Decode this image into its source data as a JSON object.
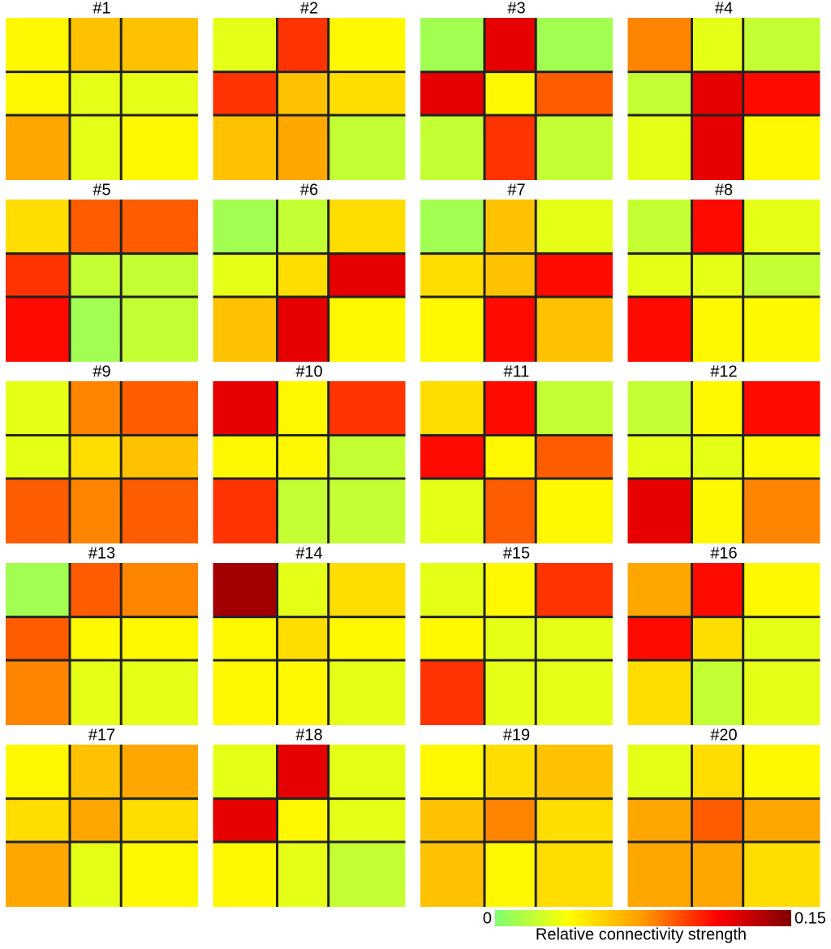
{
  "chart_data": {
    "type": "heatmap",
    "size": 30,
    "colormap": [
      "#80ff70",
      "#ffff00",
      "#ff9900",
      "#ff0000",
      "#800000"
    ],
    "colorbar": {
      "label": "Relative connectivity strength",
      "lim": [
        0,
        0.15
      ],
      "ticks": [
        0,
        0.15
      ]
    },
    "panels": [
      {
        "title": "#1",
        "boundaries": [
          10,
          18
        ],
        "values": [
          [
            0.04,
            0.06,
            0.06
          ],
          [
            0.04,
            0.03,
            0.03
          ],
          [
            0.07,
            0.03,
            0.04
          ]
        ]
      },
      {
        "title": "#2",
        "boundaries": [
          10,
          18
        ],
        "values": [
          [
            0.03,
            0.1,
            0.04
          ],
          [
            0.1,
            0.06,
            0.05
          ],
          [
            0.06,
            0.07,
            0.02
          ]
        ]
      },
      {
        "title": "#3",
        "boundaries": [
          10,
          18
        ],
        "values": [
          [
            0.01,
            0.12,
            0.01
          ],
          [
            0.12,
            0.04,
            0.09
          ],
          [
            0.02,
            0.1,
            0.02
          ]
        ]
      },
      {
        "title": "#4",
        "boundaries": [
          10,
          18
        ],
        "values": [
          [
            0.08,
            0.03,
            0.02
          ],
          [
            0.02,
            0.12,
            0.11
          ],
          [
            0.03,
            0.12,
            0.04
          ]
        ]
      },
      {
        "title": "#5",
        "boundaries": [
          10,
          18
        ],
        "values": [
          [
            0.05,
            0.09,
            0.09
          ],
          [
            0.1,
            0.02,
            0.02
          ],
          [
            0.11,
            0.01,
            0.02
          ]
        ]
      },
      {
        "title": "#6",
        "boundaries": [
          10,
          18
        ],
        "values": [
          [
            0.01,
            0.02,
            0.05
          ],
          [
            0.03,
            0.05,
            0.12
          ],
          [
            0.06,
            0.12,
            0.04
          ]
        ]
      },
      {
        "title": "#7",
        "boundaries": [
          10,
          18
        ],
        "values": [
          [
            0.01,
            0.06,
            0.03
          ],
          [
            0.05,
            0.06,
            0.11
          ],
          [
            0.04,
            0.11,
            0.06
          ]
        ]
      },
      {
        "title": "#8",
        "boundaries": [
          10,
          18
        ],
        "values": [
          [
            0.02,
            0.11,
            0.03
          ],
          [
            0.03,
            0.03,
            0.02
          ],
          [
            0.11,
            0.04,
            0.04
          ]
        ]
      },
      {
        "title": "#9",
        "boundaries": [
          10,
          18
        ],
        "values": [
          [
            0.03,
            0.08,
            0.09
          ],
          [
            0.03,
            0.05,
            0.06
          ],
          [
            0.09,
            0.08,
            0.09
          ]
        ]
      },
      {
        "title": "#10",
        "boundaries": [
          10,
          18
        ],
        "values": [
          [
            0.12,
            0.04,
            0.1
          ],
          [
            0.04,
            0.04,
            0.02
          ],
          [
            0.1,
            0.02,
            0.02
          ]
        ]
      },
      {
        "title": "#11",
        "boundaries": [
          10,
          18
        ],
        "values": [
          [
            0.05,
            0.11,
            0.02
          ],
          [
            0.11,
            0.04,
            0.09
          ],
          [
            0.03,
            0.09,
            0.04
          ]
        ]
      },
      {
        "title": "#12",
        "boundaries": [
          10,
          18
        ],
        "values": [
          [
            0.02,
            0.04,
            0.11
          ],
          [
            0.03,
            0.03,
            0.04
          ],
          [
            0.12,
            0.04,
            0.08
          ]
        ]
      },
      {
        "title": "#13",
        "boundaries": [
          10,
          18
        ],
        "values": [
          [
            0.01,
            0.09,
            0.08
          ],
          [
            0.09,
            0.04,
            0.04
          ],
          [
            0.08,
            0.03,
            0.03
          ]
        ]
      },
      {
        "title": "#14",
        "boundaries": [
          10,
          18
        ],
        "values": [
          [
            0.14,
            0.03,
            0.05
          ],
          [
            0.04,
            0.05,
            0.04
          ],
          [
            0.04,
            0.04,
            0.03
          ]
        ]
      },
      {
        "title": "#15",
        "boundaries": [
          10,
          18
        ],
        "values": [
          [
            0.03,
            0.04,
            0.1
          ],
          [
            0.04,
            0.03,
            0.03
          ],
          [
            0.1,
            0.03,
            0.03
          ]
        ]
      },
      {
        "title": "#16",
        "boundaries": [
          10,
          18
        ],
        "values": [
          [
            0.07,
            0.11,
            0.04
          ],
          [
            0.11,
            0.05,
            0.03
          ],
          [
            0.05,
            0.02,
            0.03
          ]
        ]
      },
      {
        "title": "#17",
        "boundaries": [
          10,
          18
        ],
        "values": [
          [
            0.04,
            0.06,
            0.07
          ],
          [
            0.05,
            0.07,
            0.05
          ],
          [
            0.07,
            0.03,
            0.04
          ]
        ]
      },
      {
        "title": "#18",
        "boundaries": [
          10,
          18
        ],
        "values": [
          [
            0.03,
            0.12,
            0.03
          ],
          [
            0.12,
            0.04,
            0.03
          ],
          [
            0.04,
            0.03,
            0.02
          ]
        ]
      },
      {
        "title": "#19",
        "boundaries": [
          10,
          18
        ],
        "values": [
          [
            0.04,
            0.05,
            0.06
          ],
          [
            0.06,
            0.08,
            0.05
          ],
          [
            0.06,
            0.04,
            0.05
          ]
        ]
      },
      {
        "title": "#20",
        "boundaries": [
          10,
          18
        ],
        "values": [
          [
            0.03,
            0.05,
            0.04
          ],
          [
            0.07,
            0.09,
            0.07
          ],
          [
            0.07,
            0.07,
            0.05
          ]
        ]
      }
    ]
  }
}
